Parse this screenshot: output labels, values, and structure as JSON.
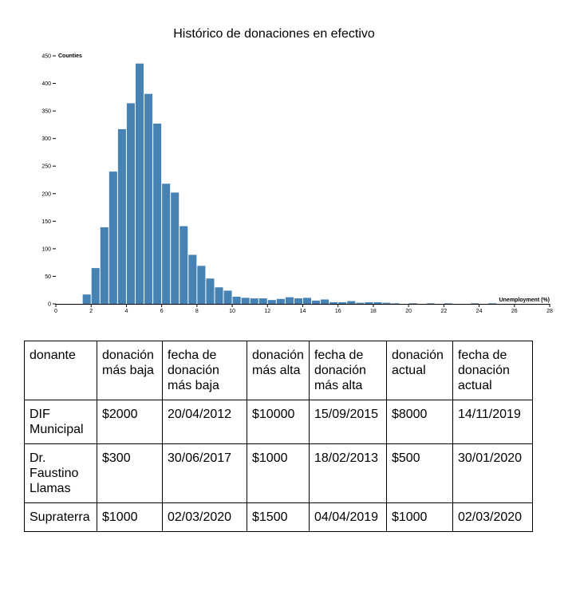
{
  "chart_data": {
    "type": "bar",
    "title": "Histórico de donaciones en efectivo",
    "ylabel": "Counties",
    "xlabel": "Unemployment (%)",
    "xlim": [
      0,
      28
    ],
    "ylim": [
      0,
      450
    ],
    "xticks": [
      0,
      2,
      4,
      6,
      8,
      10,
      12,
      14,
      16,
      18,
      20,
      22,
      24,
      26,
      28
    ],
    "yticks": [
      0,
      50,
      100,
      150,
      200,
      250,
      300,
      350,
      400,
      450
    ],
    "bin_width": 0.5,
    "color": "#4682b4",
    "bins_start": [
      1.5,
      2,
      2.5,
      3,
      3.5,
      4,
      4.5,
      5,
      5.5,
      6,
      6.5,
      7,
      7.5,
      8,
      8.5,
      9,
      9.5,
      10,
      10.5,
      11,
      11.5,
      12,
      12.5,
      13,
      13.5,
      14,
      14.5,
      15,
      15.5,
      16,
      16.5,
      17,
      17.5,
      18,
      18.5,
      19,
      20,
      21,
      22,
      23.5,
      24.5
    ],
    "values": [
      17,
      65,
      139,
      240,
      317,
      364,
      436,
      381,
      327,
      218,
      202,
      141,
      89,
      69,
      46,
      30,
      24,
      13,
      11,
      10,
      10,
      7,
      9,
      12,
      10,
      11,
      6,
      8,
      3,
      3,
      5,
      2,
      3,
      3,
      2,
      1,
      1,
      1,
      1,
      1,
      1
    ]
  },
  "table": {
    "headers": [
      "donante",
      "donación más baja",
      "fecha de donación más baja",
      "donación más alta",
      "fecha de donación más alta",
      "donación actual",
      "fecha de donación actual"
    ],
    "rows": [
      [
        "DIF Municipal",
        "$2000",
        "20/04/2012",
        "$10000",
        "15/09/2015",
        "$8000",
        "14/11/2019"
      ],
      [
        "Dr. Faustino Llamas",
        "$300",
        "30/06/2017",
        "$1000",
        "18/02/2013",
        "$500",
        "30/01/2020"
      ],
      [
        "Supraterra",
        "$1000",
        "02/03/2020",
        "$1500",
        "04/04/2019",
        "$1000",
        "02/03/2020"
      ]
    ]
  }
}
